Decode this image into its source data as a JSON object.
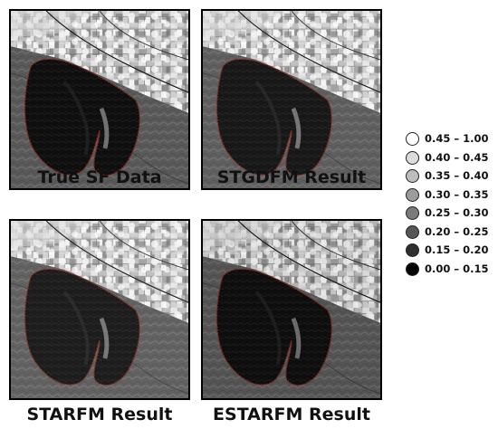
{
  "panels": [
    {
      "id": "true-sf",
      "caption": "True SF Data"
    },
    {
      "id": "stgdfm",
      "caption": "STGDFM Result"
    },
    {
      "id": "starfm",
      "caption": "STARFM Result"
    },
    {
      "id": "estarfm",
      "caption": "ESTARFM Result"
    }
  ],
  "legend": {
    "items": [
      {
        "label": "0.45 – 1.00",
        "color": "#ffffff"
      },
      {
        "label": "0.40 – 0.45",
        "color": "#dcdcdc"
      },
      {
        "label": "0.35 – 0.40",
        "color": "#bdbdbd"
      },
      {
        "label": "0.30 – 0.35",
        "color": "#9c9c9c"
      },
      {
        "label": "0.25 – 0.30",
        "color": "#7a7a7a"
      },
      {
        "label": "0.20 – 0.25",
        "color": "#565656"
      },
      {
        "label": "0.15 – 0.20",
        "color": "#2e2e2e"
      },
      {
        "label": "0.00 – 0.15",
        "color": "#000000"
      }
    ]
  }
}
